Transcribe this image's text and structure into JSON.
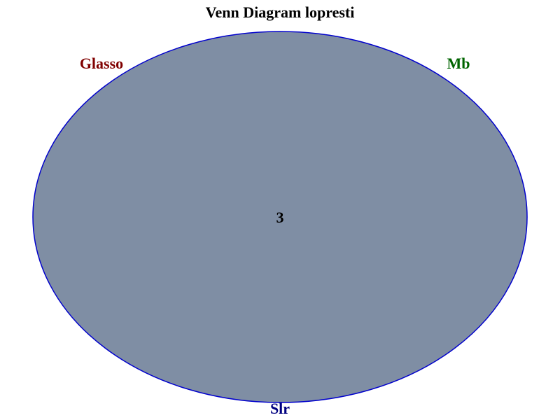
{
  "title": "Venn Diagram lopresti",
  "sets": [
    {
      "name": "Glasso",
      "color": "#800000"
    },
    {
      "name": "Mb",
      "color": "#006400"
    },
    {
      "name": "Slr",
      "color": "#000080"
    }
  ],
  "regions": [
    {
      "sets": [
        "Glasso",
        "Mb",
        "Slr"
      ],
      "count": "3"
    }
  ],
  "colors": {
    "fill": "#7f8ea4",
    "outline": "#0000cc",
    "background": "#ffffff"
  }
}
